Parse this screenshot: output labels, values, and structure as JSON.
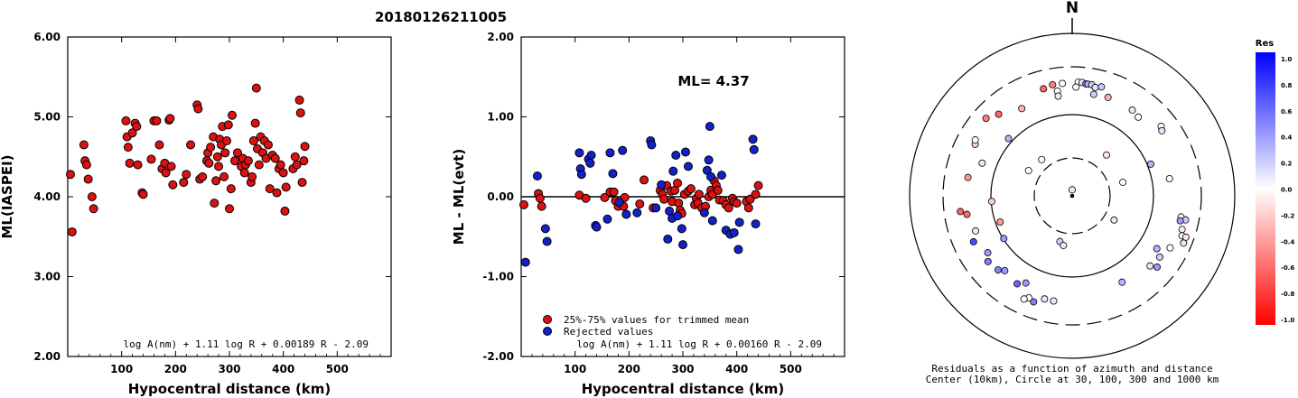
{
  "figure_title": "20180126211005",
  "chart_data": [
    {
      "type": "scatter",
      "name": "ml-vs-distance",
      "xlabel": "Hypocentral distance (km)",
      "ylabel": "ML(IASPEI)",
      "xlim": [
        0,
        600
      ],
      "ylim": [
        2.0,
        6.0
      ],
      "xticks": [
        100,
        200,
        300,
        400,
        500
      ],
      "yticks": [
        2.0,
        3.0,
        4.0,
        5.0,
        6.0
      ],
      "ytick_labels": [
        "2.00",
        "3.00",
        "4.00",
        "5.00",
        "6.00"
      ],
      "formula": "log A(nm) + 1.11 log R + 0.00189 R - 2.09",
      "points": [
        [
          5,
          4.28
        ],
        [
          8,
          3.56
        ],
        [
          30,
          4.65
        ],
        [
          32,
          4.45
        ],
        [
          35,
          4.4
        ],
        [
          38,
          4.22
        ],
        [
          45,
          4.0
        ],
        [
          48,
          3.85
        ],
        [
          108,
          4.95
        ],
        [
          110,
          4.75
        ],
        [
          112,
          4.62
        ],
        [
          115,
          4.42
        ],
        [
          120,
          4.8
        ],
        [
          125,
          4.92
        ],
        [
          128,
          4.88
        ],
        [
          130,
          4.4
        ],
        [
          138,
          4.05
        ],
        [
          140,
          4.03
        ],
        [
          155,
          4.47
        ],
        [
          160,
          4.95
        ],
        [
          165,
          4.95
        ],
        [
          170,
          4.65
        ],
        [
          175,
          4.35
        ],
        [
          180,
          4.42
        ],
        [
          182,
          4.3
        ],
        [
          188,
          4.96
        ],
        [
          190,
          4.98
        ],
        [
          192,
          4.38
        ],
        [
          195,
          4.15
        ],
        [
          215,
          4.18
        ],
        [
          220,
          4.28
        ],
        [
          228,
          4.65
        ],
        [
          240,
          5.15
        ],
        [
          242,
          5.1
        ],
        [
          245,
          4.22
        ],
        [
          250,
          4.25
        ],
        [
          258,
          4.45
        ],
        [
          260,
          4.55
        ],
        [
          262,
          4.42
        ],
        [
          265,
          4.62
        ],
        [
          270,
          4.75
        ],
        [
          272,
          3.92
        ],
        [
          275,
          4.2
        ],
        [
          278,
          4.5
        ],
        [
          280,
          4.38
        ],
        [
          282,
          4.72
        ],
        [
          285,
          4.65
        ],
        [
          287,
          4.88
        ],
        [
          290,
          4.25
        ],
        [
          292,
          4.55
        ],
        [
          295,
          4.7
        ],
        [
          298,
          4.9
        ],
        [
          300,
          3.85
        ],
        [
          303,
          4.1
        ],
        [
          305,
          5.02
        ],
        [
          310,
          4.45
        ],
        [
          315,
          4.55
        ],
        [
          322,
          4.38
        ],
        [
          325,
          4.48
        ],
        [
          328,
          4.3
        ],
        [
          330,
          4.4
        ],
        [
          335,
          4.45
        ],
        [
          340,
          4.18
        ],
        [
          342,
          4.25
        ],
        [
          345,
          4.7
        ],
        [
          348,
          4.92
        ],
        [
          350,
          5.36
        ],
        [
          352,
          4.6
        ],
        [
          355,
          4.4
        ],
        [
          358,
          4.75
        ],
        [
          362,
          4.55
        ],
        [
          365,
          4.7
        ],
        [
          368,
          4.48
        ],
        [
          372,
          4.65
        ],
        [
          375,
          4.1
        ],
        [
          380,
          4.52
        ],
        [
          385,
          4.48
        ],
        [
          388,
          4.05
        ],
        [
          392,
          4.35
        ],
        [
          395,
          4.4
        ],
        [
          400,
          4.3
        ],
        [
          403,
          3.82
        ],
        [
          405,
          4.12
        ],
        [
          418,
          4.35
        ],
        [
          422,
          4.5
        ],
        [
          425,
          4.4
        ],
        [
          430,
          5.21
        ],
        [
          432,
          5.05
        ],
        [
          435,
          4.18
        ],
        [
          438,
          4.45
        ],
        [
          440,
          4.63
        ]
      ]
    },
    {
      "type": "scatter",
      "name": "residual-vs-distance",
      "xlabel": "Hypocentral distance (km)",
      "ylabel": "ML - ML(evt)",
      "xlim": [
        0,
        600
      ],
      "ylim": [
        -2.0,
        2.0
      ],
      "xticks": [
        100,
        200,
        300,
        400,
        500
      ],
      "yticks": [
        -2.0,
        -1.0,
        0.0,
        1.0,
        2.0
      ],
      "ytick_labels": [
        "-2.00",
        "-1.00",
        "0.00",
        "1.00",
        "2.00"
      ],
      "annotation": "ML= 4.37",
      "formula": "log A(nm) + 1.11 log R + 0.00160 R - 2.09",
      "series": [
        {
          "name": "25%-75% values for trimmed mean",
          "color": "#dd1111",
          "points": [
            [
              5,
              -0.1
            ],
            [
              32,
              0.04
            ],
            [
              35,
              -0.02
            ],
            [
              38,
              -0.12
            ],
            [
              108,
              0.02
            ],
            [
              120,
              -0.02
            ],
            [
              155,
              -0.01
            ],
            [
              165,
              0.06
            ],
            [
              172,
              0.06
            ],
            [
              175,
              -0.05
            ],
            [
              180,
              -0.12
            ],
            [
              190,
              -0.12
            ],
            [
              192,
              -0.01
            ],
            [
              220,
              -0.09
            ],
            [
              228,
              0.21
            ],
            [
              245,
              -0.14
            ],
            [
              258,
              0.08
            ],
            [
              262,
              0.03
            ],
            [
              265,
              -0.03
            ],
            [
              270,
              0.14
            ],
            [
              278,
              0.07
            ],
            [
              280,
              -0.06
            ],
            [
              285,
              0.08
            ],
            [
              290,
              0.17
            ],
            [
              292,
              -0.08
            ],
            [
              295,
              -0.17
            ],
            [
              298,
              -0.21
            ],
            [
              303,
              0.03
            ],
            [
              310,
              0.07
            ],
            [
              315,
              0.1
            ],
            [
              322,
              -0.1
            ],
            [
              325,
              -0.02
            ],
            [
              328,
              -0.08
            ],
            [
              330,
              0.03
            ],
            [
              335,
              -0.14
            ],
            [
              342,
              -0.12
            ],
            [
              348,
              0.0
            ],
            [
              352,
              0.08
            ],
            [
              355,
              0.03
            ],
            [
              358,
              0.2
            ],
            [
              362,
              0.14
            ],
            [
              365,
              0.08
            ],
            [
              368,
              -0.04
            ],
            [
              375,
              -0.05
            ],
            [
              380,
              -0.1
            ],
            [
              385,
              -0.14
            ],
            [
              392,
              -0.02
            ],
            [
              395,
              -0.06
            ],
            [
              400,
              -0.08
            ],
            [
              418,
              -0.06
            ],
            [
              422,
              -0.14
            ],
            [
              425,
              -0.03
            ],
            [
              435,
              0.03
            ],
            [
              440,
              0.14
            ]
          ]
        },
        {
          "name": "Rejected values",
          "color": "#1122cc",
          "points": [
            [
              8,
              -0.82
            ],
            [
              30,
              0.26
            ],
            [
              45,
              -0.4
            ],
            [
              48,
              -0.56
            ],
            [
              108,
              0.55
            ],
            [
              110,
              0.35
            ],
            [
              112,
              0.28
            ],
            [
              125,
              0.47
            ],
            [
              128,
              0.42
            ],
            [
              130,
              0.52
            ],
            [
              138,
              -0.36
            ],
            [
              140,
              -0.38
            ],
            [
              160,
              -0.28
            ],
            [
              165,
              0.55
            ],
            [
              170,
              0.29
            ],
            [
              182,
              -0.07
            ],
            [
              188,
              0.58
            ],
            [
              195,
              -0.22
            ],
            [
              215,
              -0.2
            ],
            [
              240,
              0.7
            ],
            [
              242,
              0.65
            ],
            [
              250,
              -0.14
            ],
            [
              260,
              0.15
            ],
            [
              272,
              -0.53
            ],
            [
              275,
              -0.18
            ],
            [
              280,
              -0.27
            ],
            [
              282,
              0.32
            ],
            [
              287,
              0.52
            ],
            [
              290,
              -0.24
            ],
            [
              298,
              -0.4
            ],
            [
              300,
              -0.6
            ],
            [
              305,
              0.56
            ],
            [
              310,
              0.38
            ],
            [
              340,
              -0.2
            ],
            [
              345,
              0.33
            ],
            [
              348,
              0.46
            ],
            [
              350,
              0.88
            ],
            [
              352,
              0.25
            ],
            [
              355,
              -0.3
            ],
            [
              372,
              0.27
            ],
            [
              380,
              -0.42
            ],
            [
              388,
              -0.47
            ],
            [
              395,
              -0.45
            ],
            [
              403,
              -0.66
            ],
            [
              405,
              -0.32
            ],
            [
              430,
              0.72
            ],
            [
              432,
              0.59
            ],
            [
              435,
              -0.34
            ]
          ]
        }
      ],
      "reference_line": 0.0
    },
    {
      "type": "scatter",
      "name": "azimuth-distance-residuals",
      "north_label": "N",
      "caption_line1": "Residuals as a function of azimuth and distance",
      "caption_line2": "Center (10km), Circle at 30, 100, 300 and 1000 km",
      "ring_distances_km": [
        30,
        100,
        300,
        1000
      ],
      "colorbar": {
        "title": "Res",
        "labels": [
          "1.0",
          "0.8",
          "0.6",
          "0.4",
          "0.2",
          "0.0",
          "-0.2",
          "-0.4",
          "-0.6",
          "-0.8",
          "-1.0"
        ],
        "max_color": "#0000ff",
        "zero_color": "#ffffff",
        "min_color": "#ff0000"
      },
      "stations_polar": [
        [
          0,
          0.06,
          -0.1
        ],
        [
          40,
          0.53,
          -0.1
        ],
        [
          75,
          0.52,
          0.0
        ],
        [
          120,
          0.48,
          0.1
        ],
        [
          350,
          1.12,
          -0.5
        ],
        [
          345,
          1.1,
          -0.6
        ],
        [
          355,
          1.12,
          0.0
        ],
        [
          352,
          1.05,
          0.0
        ],
        [
          352,
          1.0,
          -0.1
        ],
        [
          3,
          1.13,
          0.0
        ],
        [
          5,
          1.13,
          0.1
        ],
        [
          7,
          1.12,
          0.5
        ],
        [
          8,
          1.12,
          0.3
        ],
        [
          10,
          1.12,
          0.2
        ],
        [
          12,
          1.1,
          0.1
        ],
        [
          15,
          1.12,
          0.2
        ],
        [
          12,
          1.03,
          0.2
        ],
        [
          2,
          1.08,
          0.0
        ],
        [
          20,
          1.04,
          -0.3
        ],
        [
          35,
          1.04,
          0.1
        ],
        [
          40,
          1.02,
          0.0
        ],
        [
          52,
          1.12,
          0.0
        ],
        [
          54,
          1.1,
          0.1
        ],
        [
          101,
          1.1,
          0.0
        ],
        [
          102,
          1.15,
          0.2
        ],
        [
          103,
          1.1,
          0.4
        ],
        [
          107,
          1.14,
          -0.1
        ],
        [
          110,
          1.16,
          0.0
        ],
        [
          110,
          1.2,
          -0.1
        ],
        [
          113,
          1.2,
          0.1
        ],
        [
          118,
          1.1,
          0.0
        ],
        [
          122,
          0.99,
          0.3
        ],
        [
          125,
          1.06,
          0.2
        ],
        [
          130,
          1.1,
          0.4
        ],
        [
          132,
          1.04,
          0.1
        ],
        [
          150,
          0.99,
          0.3
        ],
        [
          190,
          1.06,
          0.1
        ],
        [
          195,
          1.06,
          0.1
        ],
        [
          200,
          1.12,
          0.5
        ],
        [
          203,
          1.1,
          0.0
        ],
        [
          205,
          1.13,
          0.0
        ],
        [
          208,
          0.98,
          0.4
        ],
        [
          212,
          1.03,
          0.6
        ],
        [
          222,
          1.0,
          0.4
        ],
        [
          225,
          1.04,
          0.5
        ],
        [
          232,
          1.06,
          0.5
        ],
        [
          236,
          1.01,
          0.4
        ],
        [
          238,
          0.8,
          0.4
        ],
        [
          245,
          1.08,
          0.7
        ],
        [
          250,
          1.02,
          0.1
        ],
        [
          250,
          0.76,
          -0.4
        ],
        [
          260,
          1.06,
          -0.6
        ],
        [
          262,
          1.12,
          -0.6
        ],
        [
          266,
          0.8,
          -0.2
        ],
        [
          280,
          1.05,
          -0.4
        ],
        [
          290,
          0.95,
          0.1
        ],
        [
          298,
          1.09,
          -0.2
        ],
        [
          300,
          1.11,
          0.0
        ],
        [
          312,
          1.15,
          -0.5
        ],
        [
          312,
          0.85,
          0.3
        ],
        [
          318,
          1.09,
          -0.6
        ],
        [
          330,
          1.0,
          -0.3
        ],
        [
          80,
          0.98,
          0.0
        ],
        [
          68,
          0.84,
          0.3
        ],
        [
          300,
          0.5,
          0.0
        ],
        [
          320,
          0.47,
          0.0
        ],
        [
          195,
          0.47,
          0.2
        ],
        [
          190,
          0.5,
          0.1
        ]
      ]
    }
  ]
}
